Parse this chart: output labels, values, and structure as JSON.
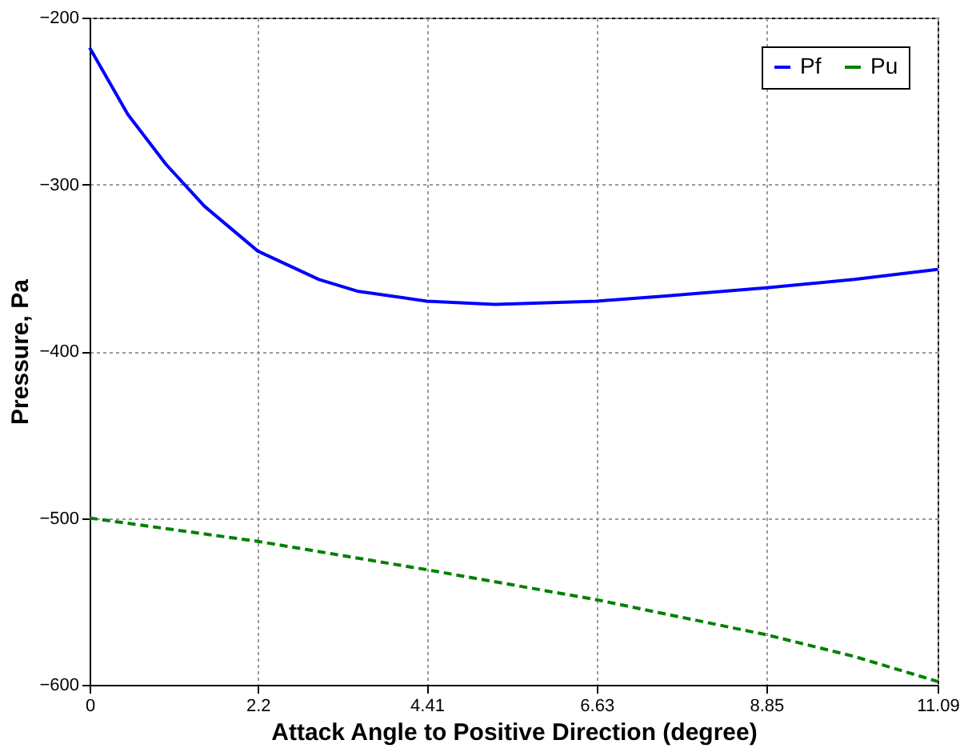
{
  "chart_data": {
    "type": "line",
    "xlabel": "Attack Angle to Positive Direction (degree)",
    "ylabel": "Pressure, Pa",
    "xlim": [
      0,
      11.09
    ],
    "xticks": [
      0,
      2.2,
      4.41,
      6.63,
      8.85,
      11.09
    ],
    "ylim": [
      -600,
      -200
    ],
    "yticks": [
      -600,
      -500,
      -400,
      -300,
      -200
    ],
    "grid": true,
    "legend": "top right",
    "marker": "none",
    "series": [
      {
        "name": "Pf",
        "color": "#0000ff",
        "line_style": "solid",
        "x": [
          0,
          0.5,
          1,
          1.5,
          2.2,
          3,
          3.5,
          4.41,
          5.3,
          6.63,
          7.5,
          8.85,
          10,
          11.09
        ],
        "values": [
          -218,
          -258,
          -288,
          -313,
          -340,
          -357,
          -364,
          -370,
          -372,
          -370,
          -367,
          -362,
          -357,
          -351
        ]
      },
      {
        "name": "Pu",
        "color": "#008000",
        "line_style": "dashed",
        "x": [
          0,
          2.2,
          4.41,
          6.63,
          8.85,
          10,
          11.09
        ],
        "values": [
          -500,
          -514,
          -531,
          -549,
          -570,
          -583,
          -598
        ]
      }
    ]
  }
}
